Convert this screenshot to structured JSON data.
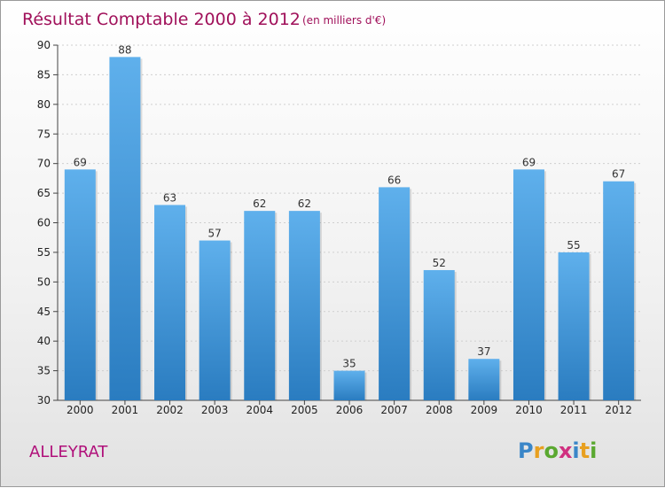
{
  "title": "Résultat Comptable 2000 à 2012",
  "subtitle": "(en milliers d'€)",
  "commune": "ALLEYRAT",
  "brand": {
    "letters": [
      {
        "ch": "P",
        "color": "#3a86c8"
      },
      {
        "ch": "r",
        "color": "#e8a020"
      },
      {
        "ch": "o",
        "color": "#5aa830"
      },
      {
        "ch": "x",
        "color": "#d03080"
      },
      {
        "ch": "i",
        "color": "#3a86c8"
      },
      {
        "ch": "t",
        "color": "#e8a020"
      },
      {
        "ch": "i",
        "color": "#5aa830"
      }
    ]
  },
  "colors": {
    "title": "#a0105a",
    "bar_top": "#5fb0ec",
    "bar_bottom": "#2a7cc0"
  },
  "chart_data": {
    "type": "bar",
    "title": "Résultat Comptable 2000 à 2012",
    "subtitle": "(en milliers d'€)",
    "categories": [
      "2000",
      "2001",
      "2002",
      "2003",
      "2004",
      "2005",
      "2006",
      "2007",
      "2008",
      "2009",
      "2010",
      "2011",
      "2012"
    ],
    "values": [
      69,
      88,
      63,
      57,
      62,
      62,
      35,
      66,
      52,
      37,
      69,
      55,
      67
    ],
    "ylim": [
      30,
      90
    ],
    "yticks": [
      30,
      35,
      40,
      45,
      50,
      55,
      60,
      65,
      70,
      75,
      80,
      85,
      90
    ],
    "grid": true,
    "data_labels": true
  }
}
